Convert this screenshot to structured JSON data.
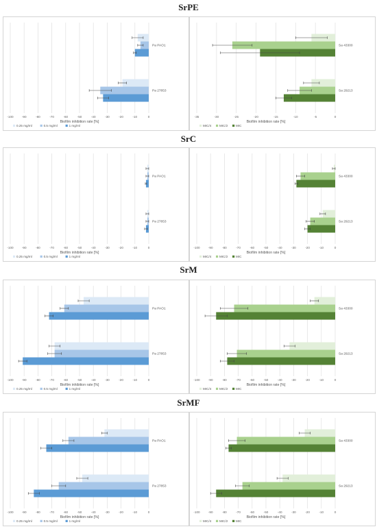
{
  "sections": [
    {
      "title": "SrPE",
      "panels": [
        {
          "type": "bar",
          "orientation": "horizontal",
          "xlabel": "Biofilm inhibition rate [%]",
          "xlim": [
            -100,
            0
          ],
          "ticks": [
            -100,
            -90,
            -80,
            -70,
            -60,
            -50,
            -40,
            -30,
            -20,
            -10,
            0
          ],
          "categories": [
            "Pa PAO1",
            "Pa 27853"
          ],
          "series": [
            {
              "name": "0.25  mg/ml",
              "color": "#dce9f6",
              "values": [
                -8,
                -19
              ],
              "errors": [
                4,
                3
              ]
            },
            {
              "name": "0.5  mg/ml",
              "color": "#a7c6e8",
              "values": [
                -6,
                -35
              ],
              "errors": [
                2,
                8
              ]
            },
            {
              "name": "1 mg/ml",
              "color": "#5b9bd5",
              "values": [
                -10,
                -33
              ],
              "errors": [
                1,
                4
              ]
            }
          ]
        },
        {
          "type": "bar",
          "orientation": "horizontal",
          "xlabel": "Biofilm inhibition rate [%]",
          "xlim": [
            -35,
            0
          ],
          "ticks": [
            -35,
            -30,
            -25,
            -20,
            -15,
            -10,
            -5,
            0
          ],
          "categories": [
            "Sa 43300",
            "Sa 29213"
          ],
          "series": [
            {
              "name": "MIC/4",
              "color": "#e2efda",
              "values": [
                -6,
                -6
              ],
              "errors": [
                4,
                2
              ]
            },
            {
              "name": "MIC/2",
              "color": "#a9d18e",
              "values": [
                -26,
                -9
              ],
              "errors": [
                5,
                3
              ]
            },
            {
              "name": "MIC",
              "color": "#548235",
              "values": [
                -19,
                -13
              ],
              "errors": [
                10,
                2
              ]
            }
          ]
        }
      ]
    },
    {
      "title": "SrC",
      "panels": [
        {
          "type": "bar",
          "orientation": "horizontal",
          "xlabel": "Biofilm inhibition rate [%]",
          "xlim": [
            -100,
            0
          ],
          "ticks": [
            -100,
            -90,
            -80,
            -70,
            -60,
            -50,
            -40,
            -30,
            -20,
            -10,
            0
          ],
          "categories": [
            "Pa PAO1",
            "Pa 27853"
          ],
          "series": [
            {
              "name": "0.25  mg/ml",
              "color": "#dce9f6",
              "values": [
                -1,
                -1
              ],
              "errors": [
                1,
                1
              ]
            },
            {
              "name": "0.5  mg/ml",
              "color": "#a7c6e8",
              "values": [
                -1,
                -1
              ],
              "errors": [
                1,
                1
              ]
            },
            {
              "name": "1 mg/ml",
              "color": "#5b9bd5",
              "values": [
                -2,
                -2
              ],
              "errors": [
                0.5,
                1
              ]
            }
          ]
        },
        {
          "type": "bar",
          "orientation": "horizontal",
          "xlabel": "Biofilm inhibition rate [%]",
          "xlim": [
            -100,
            0
          ],
          "ticks": [
            -100,
            -90,
            -80,
            -70,
            -60,
            -50,
            -40,
            -30,
            -20,
            -10,
            0
          ],
          "categories": [
            "Sa 43300",
            "Sa 29213"
          ],
          "series": [
            {
              "name": "MIC/4",
              "color": "#e2efda",
              "values": [
                -1,
                -9
              ],
              "errors": [
                1,
                2
              ]
            },
            {
              "name": "MIC/2",
              "color": "#a9d18e",
              "values": [
                -25,
                -18
              ],
              "errors": [
                3,
                3
              ]
            },
            {
              "name": "MIC",
              "color": "#548235",
              "values": [
                -28,
                -20
              ],
              "errors": [
                1,
                2
              ]
            }
          ]
        }
      ]
    },
    {
      "title": "SrM",
      "panels": [
        {
          "type": "bar",
          "orientation": "horizontal",
          "xlabel": "Biofilm inhibition rate [%]",
          "xlim": [
            -100,
            0
          ],
          "ticks": [
            -100,
            -90,
            -80,
            -70,
            -60,
            -50,
            -40,
            -30,
            -20,
            -10,
            0
          ],
          "categories": [
            "Pa PAO1",
            "Pa 27853"
          ],
          "series": [
            {
              "name": "0.25  mg/ml",
              "color": "#dce9f6",
              "values": [
                -47,
                -68
              ],
              "errors": [
                4,
                4
              ]
            },
            {
              "name": "0.5  mg/ml",
              "color": "#a7c6e8",
              "values": [
                -61,
                -68
              ],
              "errors": [
                3,
                5
              ]
            },
            {
              "name": "1 mg/ml",
              "color": "#5b9bd5",
              "values": [
                -72,
                -91
              ],
              "errors": [
                3,
                3
              ]
            }
          ]
        },
        {
          "type": "bar",
          "orientation": "horizontal",
          "xlabel": "Biofilm inhibition rate [%]",
          "xlim": [
            -100,
            0
          ],
          "ticks": [
            -100,
            -90,
            -80,
            -70,
            -60,
            -50,
            -40,
            -30,
            -20,
            -10,
            0
          ],
          "categories": [
            "Sa 43300",
            "Sa 29213"
          ],
          "series": [
            {
              "name": "MIC/4",
              "color": "#e2efda",
              "values": [
                -15,
                -33
              ],
              "errors": [
                3,
                4
              ]
            },
            {
              "name": "MIC/2",
              "color": "#a9d18e",
              "values": [
                -73,
                -71
              ],
              "errors": [
                10,
                7
              ]
            },
            {
              "name": "MIC",
              "color": "#548235",
              "values": [
                -86,
                -78
              ],
              "errors": [
                8,
                5
              ]
            }
          ]
        }
      ]
    },
    {
      "title": "SrMF",
      "panels": [
        {
          "type": "bar",
          "orientation": "horizontal",
          "xlabel": "Biofilm inhibition rate [%]",
          "xlim": [
            -100,
            0
          ],
          "ticks": [
            -100,
            -90,
            -80,
            -70,
            -60,
            -50,
            -40,
            -30,
            -20,
            -10,
            0
          ],
          "categories": [
            "Pa PAO1",
            "Pa 27853"
          ],
          "series": [
            {
              "name": "0.25  mg/ml",
              "color": "#dce9f6",
              "values": [
                -32,
                -48
              ],
              "errors": [
                2,
                4
              ]
            },
            {
              "name": "0.5  mg/ml",
              "color": "#a7c6e8",
              "values": [
                -58,
                -65
              ],
              "errors": [
                4,
                5
              ]
            },
            {
              "name": "1 mg/ml",
              "color": "#5b9bd5",
              "values": [
                -74,
                -83
              ],
              "errors": [
                4,
                4
              ]
            }
          ]
        },
        {
          "type": "bar",
          "orientation": "horizontal",
          "xlabel": "Biofilm inhibition rate [%]",
          "xlim": [
            -100,
            0
          ],
          "ticks": [
            -100,
            -90,
            -80,
            -70,
            -60,
            -50,
            -40,
            -30,
            -20,
            -10,
            0
          ],
          "categories": [
            "Sa 43300",
            "Sa 29213"
          ],
          "series": [
            {
              "name": "MIC/4",
              "color": "#e2efda",
              "values": [
                -22,
                -38
              ],
              "errors": [
                4,
                4
              ]
            },
            {
              "name": "MIC/2",
              "color": "#a9d18e",
              "values": [
                -71,
                -67
              ],
              "errors": [
                6,
                5
              ]
            },
            {
              "name": "MIC",
              "color": "#548235",
              "values": [
                -77,
                -86
              ],
              "errors": [
                2,
                4
              ]
            }
          ]
        }
      ]
    }
  ]
}
